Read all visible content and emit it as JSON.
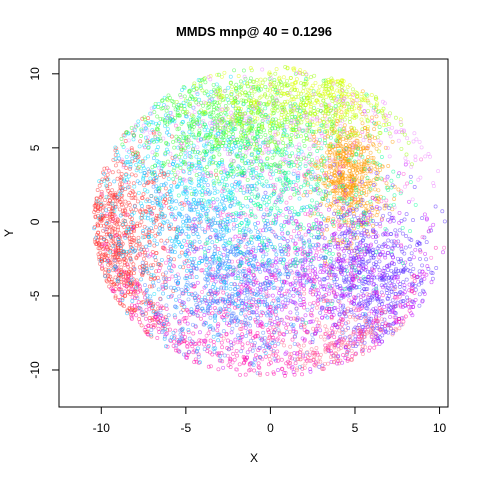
{
  "chart_data": {
    "type": "scatter",
    "title": "MMDS mnp@ 40 = 0.1296",
    "xlabel": "X",
    "ylabel": "Y",
    "xlim": [
      -12.5,
      10.5
    ],
    "ylim": [
      -12.5,
      11
    ],
    "xticks": [
      -10,
      -5,
      0,
      5,
      10
    ],
    "yticks": [
      -10,
      -5,
      0,
      5,
      10
    ],
    "xtick_labels": [
      "-10",
      "-5",
      "0",
      "5",
      "10"
    ],
    "ytick_labels": [
      "-10",
      "-5",
      "0",
      "5",
      "10"
    ],
    "grid": false,
    "legend": "none",
    "marker": "open-circle",
    "point_opacity": 0.55,
    "series": [
      {
        "color": "#ff3030",
        "cx": -9.0,
        "cy": -1.2,
        "sx": 1.8,
        "sy": 3.0,
        "count": 700
      },
      {
        "color": "#ff9900",
        "cx": 4.6,
        "cy": 3.0,
        "sx": 1.0,
        "sy": 2.0,
        "count": 600
      },
      {
        "color": "#5a2cff",
        "cx": 5.8,
        "cy": -3.5,
        "sx": 1.8,
        "sy": 2.6,
        "count": 650
      },
      {
        "color": "#c000ff",
        "cx": 2.5,
        "cy": -4.0,
        "sx": 3.5,
        "sy": 3.0,
        "count": 550
      },
      {
        "color": "#ff00aa",
        "cx": -2.0,
        "cy": -7.0,
        "sx": 5.0,
        "sy": 2.5,
        "count": 500
      },
      {
        "color": "#ff44cc",
        "cx": -1.0,
        "cy": -1.0,
        "sx": 4.5,
        "sy": 4.0,
        "count": 350
      },
      {
        "color": "#00aaff",
        "cx": -3.5,
        "cy": -1.5,
        "sx": 3.0,
        "sy": 3.5,
        "count": 650
      },
      {
        "color": "#4f7fff",
        "cx": -2.0,
        "cy": -4.5,
        "sx": 3.0,
        "sy": 2.5,
        "count": 450
      },
      {
        "color": "#00ddff",
        "cx": -4.5,
        "cy": 3.5,
        "sx": 3.0,
        "sy": 3.0,
        "count": 450
      },
      {
        "color": "#33ff33",
        "cx": -2.5,
        "cy": 6.5,
        "sx": 3.0,
        "sy": 1.8,
        "count": 550
      },
      {
        "color": "#99ff00",
        "cx": 1.0,
        "cy": 7.5,
        "sx": 3.0,
        "sy": 1.5,
        "count": 400
      },
      {
        "color": "#ddff00",
        "cx": 2.5,
        "cy": 8.5,
        "sx": 2.5,
        "sy": 1.2,
        "count": 250
      },
      {
        "color": "#00ff99",
        "cx": 1.5,
        "cy": 2.0,
        "sx": 3.0,
        "sy": 3.0,
        "count": 400
      },
      {
        "color": "#ee88ff",
        "cx": 0.5,
        "cy": 5.5,
        "sx": 5.0,
        "sy": 2.5,
        "count": 300
      },
      {
        "color": "#ff6688",
        "cx": 4.0,
        "cy": -8.0,
        "sx": 2.5,
        "sy": 2.0,
        "count": 200
      }
    ]
  }
}
